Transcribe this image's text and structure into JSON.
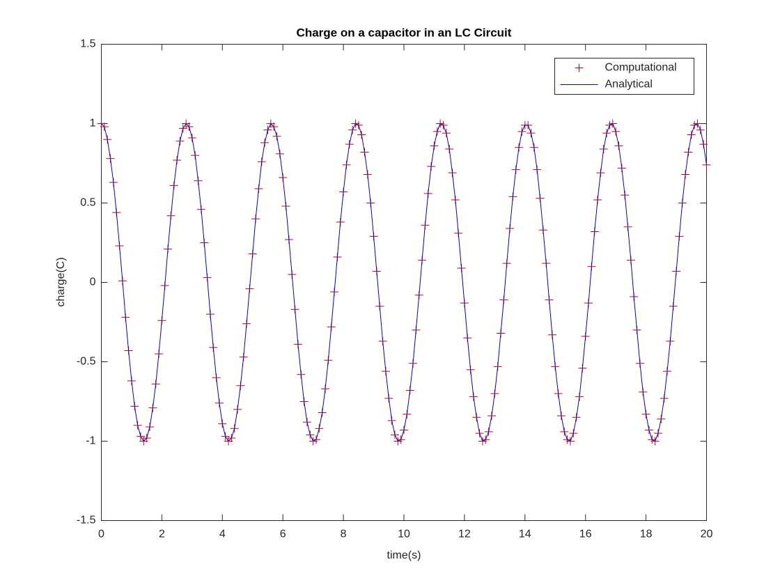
{
  "chart_data": {
    "type": "line",
    "title": "Charge on a capacitor in an LC Circuit",
    "xlabel": "time(s)",
    "ylabel": "charge(C)",
    "xlim": [
      0,
      20
    ],
    "ylim": [
      -1.5,
      1.5
    ],
    "xticks": [
      0,
      2,
      4,
      6,
      8,
      10,
      12,
      14,
      16,
      18,
      20
    ],
    "yticks": [
      -1.5,
      -1,
      -0.5,
      0,
      0.5,
      1,
      1.5
    ],
    "legend": "northeast",
    "grid": false,
    "x": [
      0,
      0.1,
      0.2,
      0.3,
      0.4,
      0.5,
      0.6,
      0.7,
      0.8,
      0.9,
      1,
      1.1,
      1.2,
      1.3,
      1.4,
      1.5,
      1.6,
      1.7,
      1.8,
      1.9,
      2,
      2.1,
      2.2,
      2.3,
      2.4,
      2.5,
      2.6,
      2.7,
      2.8,
      2.9,
      3,
      3.1,
      3.2,
      3.3,
      3.4,
      3.5,
      3.6,
      3.7,
      3.8,
      3.9,
      4,
      4.1,
      4.2,
      4.3,
      4.4,
      4.5,
      4.6,
      4.7,
      4.8,
      4.9,
      5,
      5.1,
      5.2,
      5.3,
      5.4,
      5.5,
      5.6,
      5.7,
      5.8,
      5.9,
      6,
      6.1,
      6.2,
      6.3,
      6.4,
      6.5,
      6.6,
      6.7,
      6.8,
      6.9,
      7,
      7.1,
      7.2,
      7.3,
      7.4,
      7.5,
      7.6,
      7.7,
      7.8,
      7.9,
      8,
      8.1,
      8.2,
      8.3,
      8.4,
      8.5,
      8.6,
      8.7,
      8.8,
      8.9,
      9,
      9.1,
      9.2,
      9.3,
      9.4,
      9.5,
      9.6,
      9.7,
      9.8,
      9.9,
      10,
      10.1,
      10.2,
      10.3,
      10.4,
      10.5,
      10.6,
      10.7,
      10.8,
      10.9,
      11,
      11.1,
      11.2,
      11.3,
      11.4,
      11.5,
      11.6,
      11.7,
      11.8,
      11.9,
      12,
      12.1,
      12.2,
      12.3,
      12.4,
      12.5,
      12.6,
      12.7,
      12.8,
      12.9,
      13,
      13.1,
      13.2,
      13.3,
      13.4,
      13.5,
      13.6,
      13.7,
      13.8,
      13.9,
      14,
      14.1,
      14.2,
      14.3,
      14.4,
      14.5,
      14.6,
      14.7,
      14.8,
      14.9,
      15,
      15.1,
      15.2,
      15.3,
      15.4,
      15.5,
      15.6,
      15.7,
      15.8,
      15.9,
      16,
      16.1,
      16.2,
      16.3,
      16.4,
      16.5,
      16.6,
      16.7,
      16.8,
      16.9,
      17,
      17.1,
      17.2,
      17.3,
      17.4,
      17.5,
      17.6,
      17.7,
      17.8,
      17.9,
      18,
      18.1,
      18.2,
      18.3,
      18.4,
      18.5,
      18.6,
      18.7,
      18.8,
      18.9,
      19,
      19.1,
      19.2,
      19.3,
      19.4,
      19.5,
      19.6,
      19.7,
      19.8,
      19.9,
      20
    ],
    "series": [
      {
        "name": "Computational",
        "color": "#cc0000",
        "marker": "+",
        "line": false,
        "values": [
          1,
          0.98,
          0.9,
          0.78,
          0.63,
          0.44,
          0.23,
          0.01,
          -0.22,
          -0.43,
          -0.62,
          -0.78,
          -0.9,
          -0.97,
          -1,
          -0.98,
          -0.91,
          -0.79,
          -0.64,
          -0.45,
          -0.24,
          -0.02,
          0.21,
          0.42,
          0.61,
          0.77,
          0.89,
          0.97,
          1,
          0.98,
          0.91,
          0.8,
          0.64,
          0.46,
          0.25,
          0.03,
          -0.2,
          -0.41,
          -0.6,
          -0.76,
          -0.89,
          -0.97,
          -1,
          -0.98,
          -0.92,
          -0.8,
          -0.65,
          -0.47,
          -0.26,
          -0.04,
          0.18,
          0.4,
          0.59,
          0.76,
          0.88,
          0.96,
          1,
          0.98,
          0.92,
          0.81,
          0.66,
          0.48,
          0.27,
          0.05,
          -0.17,
          -0.39,
          -0.58,
          -0.75,
          -0.88,
          -0.96,
          -1,
          -0.99,
          -0.92,
          -0.82,
          -0.67,
          -0.49,
          -0.28,
          -0.06,
          0.16,
          0.38,
          0.57,
          0.74,
          0.87,
          0.96,
          1,
          0.99,
          0.93,
          0.82,
          0.68,
          0.5,
          0.29,
          0.07,
          -0.15,
          -0.37,
          -0.56,
          -0.73,
          -0.87,
          -0.96,
          -1,
          -0.99,
          -0.93,
          -0.83,
          -0.68,
          -0.51,
          -0.3,
          -0.08,
          0.14,
          0.36,
          0.56,
          0.73,
          0.86,
          0.95,
          1,
          0.99,
          0.94,
          0.84,
          0.69,
          0.52,
          0.31,
          0.09,
          -0.13,
          -0.35,
          -0.55,
          -0.72,
          -0.85,
          -0.95,
          -1,
          -0.99,
          -0.94,
          -0.84,
          -0.7,
          -0.53,
          -0.32,
          -0.11,
          0.12,
          0.34,
          0.54,
          0.71,
          0.85,
          0.95,
          0.99,
          0.99,
          0.94,
          0.85,
          0.71,
          0.53,
          0.33,
          0.12,
          -0.11,
          -0.33,
          -0.53,
          -0.7,
          -0.84,
          -0.94,
          -0.99,
          -1,
          -0.95,
          -0.85,
          -0.72,
          -0.54,
          -0.34,
          -0.13,
          0.1,
          0.32,
          0.52,
          0.69,
          0.84,
          0.94,
          0.99,
          1,
          0.95,
          0.86,
          0.72,
          0.55,
          0.35,
          0.14,
          -0.09,
          -0.3,
          -0.51,
          -0.69,
          -0.83,
          -0.93,
          -0.99,
          -1,
          -0.95,
          -0.86,
          -0.73,
          -0.56,
          -0.37,
          -0.15,
          0.07,
          0.29,
          0.5,
          0.68,
          0.82,
          0.93,
          0.99,
          1,
          0.96,
          0.87,
          0.74
        ]
      },
      {
        "name": "Analytical",
        "color": "#0000cc",
        "marker": null,
        "line": true,
        "values": [
          1,
          0.98,
          0.9,
          0.78,
          0.63,
          0.44,
          0.23,
          0.01,
          -0.22,
          -0.43,
          -0.62,
          -0.78,
          -0.9,
          -0.97,
          -1,
          -0.98,
          -0.91,
          -0.79,
          -0.64,
          -0.45,
          -0.24,
          -0.02,
          0.21,
          0.42,
          0.61,
          0.77,
          0.89,
          0.97,
          1,
          0.98,
          0.91,
          0.8,
          0.64,
          0.46,
          0.25,
          0.03,
          -0.2,
          -0.41,
          -0.6,
          -0.76,
          -0.89,
          -0.97,
          -1,
          -0.98,
          -0.92,
          -0.8,
          -0.65,
          -0.47,
          -0.26,
          -0.04,
          0.18,
          0.4,
          0.59,
          0.76,
          0.88,
          0.96,
          1,
          0.98,
          0.92,
          0.81,
          0.66,
          0.48,
          0.27,
          0.05,
          -0.17,
          -0.39,
          -0.58,
          -0.75,
          -0.88,
          -0.96,
          -1,
          -0.99,
          -0.92,
          -0.82,
          -0.67,
          -0.49,
          -0.28,
          -0.06,
          0.16,
          0.38,
          0.57,
          0.74,
          0.87,
          0.96,
          1,
          0.99,
          0.93,
          0.82,
          0.68,
          0.5,
          0.29,
          0.07,
          -0.15,
          -0.37,
          -0.56,
          -0.73,
          -0.87,
          -0.96,
          -1,
          -0.99,
          -0.93,
          -0.83,
          -0.68,
          -0.51,
          -0.3,
          -0.08,
          0.14,
          0.36,
          0.56,
          0.73,
          0.86,
          0.95,
          1,
          0.99,
          0.94,
          0.84,
          0.69,
          0.52,
          0.31,
          0.09,
          -0.13,
          -0.35,
          -0.55,
          -0.72,
          -0.85,
          -0.95,
          -1,
          -0.99,
          -0.94,
          -0.84,
          -0.7,
          -0.53,
          -0.32,
          -0.11,
          0.12,
          0.34,
          0.54,
          0.71,
          0.85,
          0.95,
          0.99,
          0.99,
          0.94,
          0.85,
          0.71,
          0.53,
          0.33,
          0.12,
          -0.11,
          -0.33,
          -0.53,
          -0.7,
          -0.84,
          -0.94,
          -0.99,
          -1,
          -0.95,
          -0.85,
          -0.72,
          -0.54,
          -0.34,
          -0.13,
          0.1,
          0.32,
          0.52,
          0.69,
          0.84,
          0.94,
          0.99,
          1,
          0.95,
          0.86,
          0.72,
          0.55,
          0.35,
          0.14,
          -0.09,
          -0.3,
          -0.51,
          -0.69,
          -0.83,
          -0.93,
          -0.99,
          -1,
          -0.95,
          -0.86,
          -0.73,
          -0.56,
          -0.37,
          -0.15,
          0.07,
          0.29,
          0.5,
          0.68,
          0.82,
          0.93,
          0.99,
          1,
          0.96,
          0.87,
          0.74
        ]
      }
    ]
  }
}
